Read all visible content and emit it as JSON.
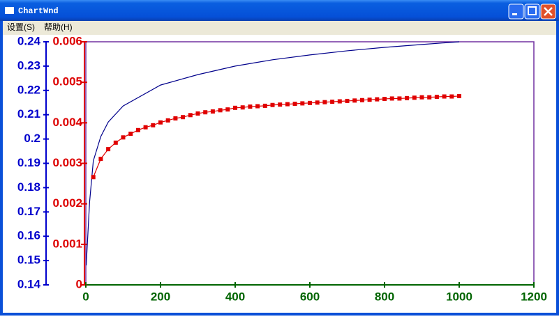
{
  "window": {
    "title": "ChartWnd",
    "menu": [
      "设置(S)",
      "帮助(H)"
    ]
  },
  "chart_data": {
    "type": "line",
    "xlim": [
      0,
      1200
    ],
    "xticks": [
      0,
      200,
      400,
      600,
      800,
      1000,
      1200
    ],
    "ylim": [
      0.14,
      0.24
    ],
    "yticks": [
      0.14,
      0.15,
      0.16,
      0.17,
      0.18,
      0.19,
      0.2,
      0.21,
      0.22,
      0.23,
      0.24
    ],
    "y2lim": [
      0,
      0.006
    ],
    "y2ticks": [
      0,
      0.001,
      0.002,
      0.003,
      0.004,
      0.005,
      0.006
    ],
    "series": [
      {
        "color": "#00008b",
        "x": [
          1,
          10,
          20,
          40,
          60,
          100,
          200,
          300,
          400,
          500,
          600,
          700,
          800,
          900,
          1000
        ],
        "values": [
          0.148,
          0.174,
          0.191,
          0.201,
          0.207,
          0.2136,
          0.2222,
          0.2265,
          0.23,
          0.2326,
          0.2346,
          0.2363,
          0.2377,
          0.2389,
          0.24
        ]
      },
      {
        "color": "#e00000",
        "axis": "y2",
        "marker": "square",
        "x": [
          20,
          40,
          60,
          80,
          100,
          120,
          140,
          160,
          180,
          200,
          220,
          240,
          260,
          280,
          300,
          320,
          340,
          360,
          380,
          400,
          420,
          440,
          460,
          480,
          500,
          520,
          540,
          560,
          580,
          600,
          620,
          640,
          660,
          680,
          700,
          720,
          740,
          760,
          780,
          800,
          820,
          840,
          860,
          880,
          900,
          920,
          940,
          960,
          980,
          1000
        ],
        "values": [
          0.00266,
          0.00311,
          0.00335,
          0.00351,
          0.00364,
          0.00373,
          0.00382,
          0.00389,
          0.00394,
          0.00401,
          0.00406,
          0.00411,
          0.00414,
          0.00419,
          0.00423,
          0.00426,
          0.00428,
          0.00431,
          0.00433,
          0.00437,
          0.00438,
          0.0044,
          0.00441,
          0.00442,
          0.00444,
          0.00445,
          0.00446,
          0.00447,
          0.00448,
          0.00449,
          0.0045,
          0.00451,
          0.00452,
          0.00453,
          0.00454,
          0.00455,
          0.00456,
          0.00457,
          0.00458,
          0.00459,
          0.0046,
          0.0046,
          0.00461,
          0.00462,
          0.00463,
          0.00463,
          0.00464,
          0.00465,
          0.00465,
          0.00466
        ]
      }
    ],
    "axis_colors": {
      "y": "#0000cc",
      "y2": "#dd0000",
      "x": "#006400"
    },
    "frame_color": "#7030a0"
  }
}
